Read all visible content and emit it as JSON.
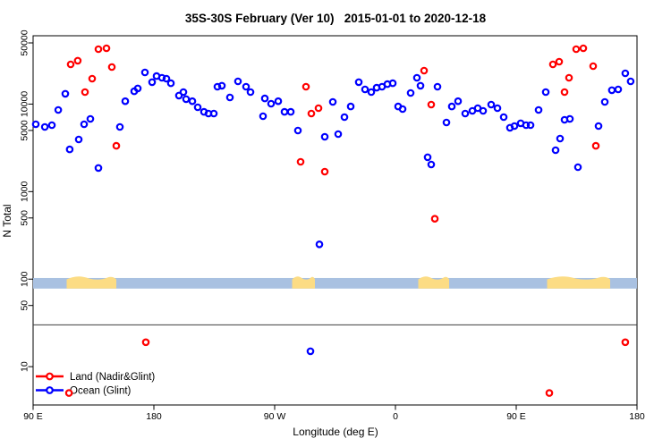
{
  "figure": {
    "title": "35S-30S February (Ver 10)   2015-01-01 to 2020-12-18",
    "xlabel": "Longitude (deg E)",
    "ylabel": "N Total"
  },
  "chart_data": {
    "type": "scatter",
    "title": "35S-30S February (Ver 10)   2015-01-01 to 2020-12-18",
    "xlabel": "Longitude (deg E)",
    "ylabel": "N Total",
    "x_axis": {
      "note": "longitude axis wraps: 90E -> 180 -> 90W -> 0 -> 90E -> 180",
      "range_deg": [
        90,
        540
      ],
      "ticks": [
        {
          "deg": 90,
          "label": "90 E"
        },
        {
          "deg": 180,
          "label": "180"
        },
        {
          "deg": 270,
          "label": "90 W"
        },
        {
          "deg": 360,
          "label": "0"
        },
        {
          "deg": 450,
          "label": "90 E"
        },
        {
          "deg": 540,
          "label": "180"
        }
      ]
    },
    "y_axis": {
      "scale": "log",
      "range": [
        4,
        60000
      ],
      "grid": false,
      "ticks": [
        {
          "value": 10,
          "label": "10"
        },
        {
          "value": 50,
          "label": "50"
        },
        {
          "value": 100,
          "label": "100"
        },
        {
          "value": 500,
          "label": "500"
        },
        {
          "value": 1000,
          "label": "1000"
        },
        {
          "value": 5000,
          "label": "5000"
        },
        {
          "value": 10000,
          "label": "10000"
        },
        {
          "value": 50000,
          "label": "50000"
        }
      ]
    },
    "reference_line_n": 30,
    "reference_line_color": "#3c3c3c",
    "map_strip": {
      "description": "land/ocean longitude strip drawn across plot near N=100",
      "ocean_color": "#a9c1e1",
      "land_color": "#fcdc84",
      "n_range": [
        78,
        103
      ],
      "land_patches_deg": [
        [
          115,
          152
        ],
        [
          283,
          300
        ],
        [
          377,
          400
        ],
        [
          473,
          520
        ]
      ]
    },
    "legend": {
      "position": "bottom-left",
      "entries": [
        {
          "label": "Land (Nadir&Glint)",
          "color": "#ff0000"
        },
        {
          "label": "Ocean (Glint)",
          "color": "#0000ff"
        }
      ]
    },
    "series": [
      {
        "name": "Land (Nadir&Glint)",
        "color": "#ff0000",
        "marker": "open-circle",
        "points": [
          [
            118.0,
            28400
          ],
          [
            123.3,
            31300
          ],
          [
            138.7,
            42400
          ],
          [
            144.7,
            43400
          ],
          [
            148.7,
            26500
          ],
          [
            134.0,
            19500
          ],
          [
            128.7,
            13700
          ],
          [
            152.0,
            3340
          ],
          [
            174.0,
            19
          ],
          [
            116.7,
            5
          ],
          [
            293.3,
            15800
          ],
          [
            297.3,
            7790
          ],
          [
            302.7,
            8980
          ],
          [
            289.3,
            2190
          ],
          [
            307.3,
            1690
          ],
          [
            381.3,
            24100
          ],
          [
            386.7,
            9860
          ],
          [
            389.3,
            490
          ],
          [
            477.3,
            28400
          ],
          [
            482.0,
            30500
          ],
          [
            494.7,
            42400
          ],
          [
            500.0,
            43400
          ],
          [
            507.3,
            27100
          ],
          [
            489.3,
            20000
          ],
          [
            486.0,
            13700
          ],
          [
            509.3,
            3340
          ],
          [
            531.3,
            19
          ],
          [
            474.7,
            5
          ]
        ]
      },
      {
        "name": "Ocean (Glint)",
        "color": "#0000ff",
        "marker": "open-circle",
        "points": [
          [
            92.0,
            5880
          ],
          [
            98.7,
            5480
          ],
          [
            104.0,
            5740
          ],
          [
            108.7,
            8570
          ],
          [
            114.0,
            13100
          ],
          [
            117.3,
            3040
          ],
          [
            124.0,
            3940
          ],
          [
            128.0,
            5880
          ],
          [
            132.7,
            6770
          ],
          [
            138.7,
            1860
          ],
          [
            154.7,
            5480
          ],
          [
            158.7,
            10800
          ],
          [
            165.3,
            14000
          ],
          [
            168.0,
            15100
          ],
          [
            173.3,
            23000
          ],
          [
            178.7,
            17800
          ],
          [
            182.0,
            20900
          ],
          [
            186.0,
            20000
          ],
          [
            189.3,
            19500
          ],
          [
            192.7,
            17300
          ],
          [
            198.7,
            12500
          ],
          [
            202.0,
            13700
          ],
          [
            204.0,
            11400
          ],
          [
            208.7,
            10800
          ],
          [
            212.7,
            9190
          ],
          [
            217.3,
            8160
          ],
          [
            220.7,
            7790
          ],
          [
            224.7,
            7790
          ],
          [
            227.3,
            15800
          ],
          [
            230.7,
            16200
          ],
          [
            236.7,
            11900
          ],
          [
            242.7,
            18200
          ],
          [
            248.7,
            15800
          ],
          [
            252.0,
            13700
          ],
          [
            261.3,
            7260
          ],
          [
            262.7,
            11600
          ],
          [
            267.3,
            10100
          ],
          [
            272.7,
            10800
          ],
          [
            277.3,
            8160
          ],
          [
            282.0,
            8160
          ],
          [
            287.3,
            4990
          ],
          [
            303.3,
            250
          ],
          [
            296.7,
            15
          ],
          [
            307.3,
            4230
          ],
          [
            313.3,
            10600
          ],
          [
            317.3,
            4540
          ],
          [
            322.0,
            7100
          ],
          [
            326.7,
            9400
          ],
          [
            332.7,
            17800
          ],
          [
            337.3,
            14700
          ],
          [
            342.0,
            13700
          ],
          [
            346.0,
            15400
          ],
          [
            350.0,
            15800
          ],
          [
            354.0,
            16900
          ],
          [
            358.0,
            17300
          ],
          [
            362.0,
            9400
          ],
          [
            365.3,
            8770
          ],
          [
            371.3,
            13400
          ],
          [
            376.0,
            20000
          ],
          [
            378.7,
            16200
          ],
          [
            384.0,
            2470
          ],
          [
            386.7,
            2040
          ],
          [
            391.3,
            15800
          ],
          [
            398.0,
            6170
          ],
          [
            402.0,
            9400
          ],
          [
            406.7,
            10800
          ],
          [
            412.0,
            7790
          ],
          [
            417.3,
            8360
          ],
          [
            421.3,
            8980
          ],
          [
            425.3,
            8360
          ],
          [
            431.3,
            9860
          ],
          [
            436.0,
            8980
          ],
          [
            440.7,
            7100
          ],
          [
            445.3,
            5360
          ],
          [
            448.7,
            5610
          ],
          [
            453.3,
            6030
          ],
          [
            457.3,
            5740
          ],
          [
            460.7,
            5740
          ],
          [
            466.7,
            8570
          ],
          [
            472.0,
            13700
          ],
          [
            479.3,
            2970
          ],
          [
            482.7,
            4040
          ],
          [
            486.0,
            6610
          ],
          [
            490.0,
            6770
          ],
          [
            496.0,
            1900
          ],
          [
            511.3,
            5610
          ],
          [
            516.0,
            10600
          ],
          [
            521.3,
            14400
          ],
          [
            526.0,
            14700
          ],
          [
            531.3,
            22500
          ],
          [
            535.3,
            18200
          ]
        ]
      }
    ]
  }
}
